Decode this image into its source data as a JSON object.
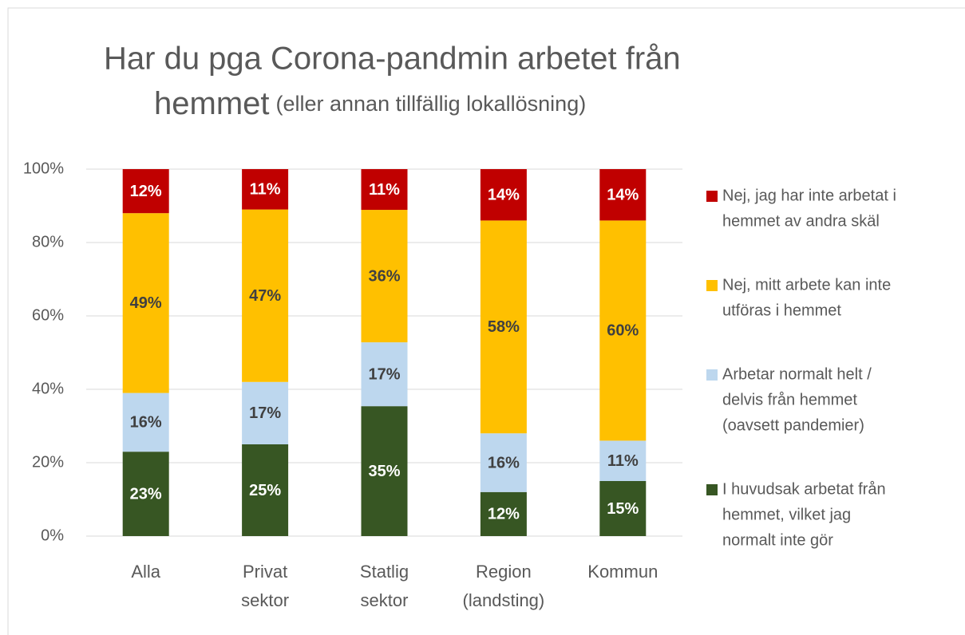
{
  "chart_data": {
    "type": "stacked_bar",
    "title": [
      "Har du pga Corona-pandmin arbetet från",
      "hemmet"
    ],
    "subtitle": "(eller annan tillfällig lokallösning)",
    "categories": [
      [
        "Alla"
      ],
      [
        "Privat",
        "sektor"
      ],
      [
        "Statlig",
        "sektor"
      ],
      [
        "Region",
        "(landsting)"
      ],
      [
        "Kommun"
      ]
    ],
    "series": [
      {
        "name": [
          "I huvudsak arbetat från",
          "hemmet, vilket jag",
          "normalt inte gör"
        ],
        "color": "#375623",
        "label_color": "#ffffff",
        "values": [
          23,
          25,
          35.4,
          12,
          15
        ],
        "value_labels": [
          "23%",
          "25%",
          "35%",
          "12%",
          "15%"
        ]
      },
      {
        "name": [
          "Arbetar normalt helt /",
          "delvis från hemmet",
          "(oavsett pandemier)"
        ],
        "color": "#bdd7ee",
        "label_color": "#404040",
        "values": [
          16,
          17,
          17.4,
          16,
          11
        ],
        "value_labels": [
          "16%",
          "17%",
          "17%",
          "16%",
          "11%"
        ]
      },
      {
        "name": [
          "Nej, mitt arbete kan inte",
          "utföras i hemmet"
        ],
        "color": "#ffc000",
        "label_color": "#404040",
        "values": [
          49,
          47,
          36.1,
          58,
          60
        ],
        "value_labels": [
          "49%",
          "47%",
          "36%",
          "58%",
          "60%"
        ]
      },
      {
        "name": [
          "Nej, jag har inte arbetat i",
          "hemmet av andra skäl"
        ],
        "color": "#c00000",
        "label_color": "#ffffff",
        "values": [
          12,
          11,
          11.1,
          14,
          14
        ],
        "value_labels": [
          "12%",
          "11%",
          "11%",
          "14%",
          "14%"
        ]
      }
    ],
    "ylim": [
      0,
      100
    ],
    "yticks": [
      {
        "value": 0,
        "label": "0%"
      },
      {
        "value": 20,
        "label": "20%"
      },
      {
        "value": 40,
        "label": "40%"
      },
      {
        "value": 60,
        "label": "60%"
      },
      {
        "value": 80,
        "label": "80%"
      },
      {
        "value": 100,
        "label": "100%"
      }
    ],
    "grid": true,
    "legend": "right"
  }
}
